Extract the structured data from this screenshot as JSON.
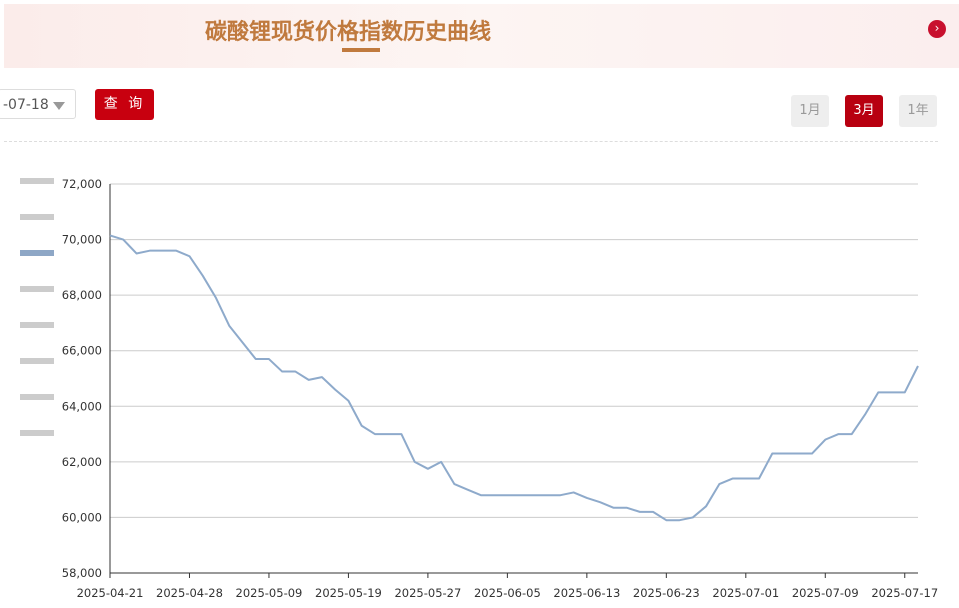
{
  "header": {
    "title": "碳酸锂现货价格指数历史曲线"
  },
  "controls": {
    "date": "-07-18",
    "query": "查 询",
    "ranges": [
      "1月",
      "3月",
      "1年"
    ]
  },
  "chart_data": {
    "type": "line",
    "categories": [
      "2025-04-21",
      null,
      null,
      null,
      null,
      null,
      "2025-04-28",
      null,
      null,
      null,
      null,
      null,
      "2025-05-09",
      null,
      null,
      null,
      null,
      null,
      "2025-05-19",
      null,
      null,
      null,
      null,
      null,
      "2025-05-27",
      null,
      null,
      null,
      null,
      null,
      "2025-06-05",
      null,
      null,
      null,
      null,
      null,
      "2025-06-13",
      null,
      null,
      null,
      null,
      null,
      "2025-06-23",
      null,
      null,
      null,
      null,
      null,
      "2025-07-01",
      null,
      null,
      null,
      null,
      null,
      "2025-07-09",
      null,
      null,
      null,
      null,
      null,
      "2025-07-17",
      null
    ],
    "series": [
      {
        "name": "碳酸锂现货价格指数",
        "color": "#8eaacb",
        "values": [
          70150,
          70000,
          69500,
          69600,
          69600,
          69600,
          69400,
          68700,
          67900,
          66900,
          66300,
          65700,
          65700,
          65250,
          65250,
          64950,
          65050,
          64600,
          64200,
          63300,
          63000,
          63000,
          63000,
          62000,
          61750,
          62000,
          61200,
          61000,
          60800,
          60800,
          60800,
          60800,
          60800,
          60800,
          60800,
          60900,
          60700,
          60550,
          60350,
          60350,
          60200,
          60200,
          59900,
          59900,
          60000,
          60400,
          61200,
          61400,
          61400,
          61400,
          62300,
          62300,
          62300,
          62300,
          62800,
          63000,
          63000,
          63700,
          64500,
          64500,
          64500,
          65450
        ]
      }
    ],
    "ylim": [
      58000,
      72000
    ],
    "yticks": [
      {
        "value": 58000,
        "label": "58,000"
      },
      {
        "value": 60000,
        "label": "60,000"
      },
      {
        "value": 62000,
        "label": "62,000"
      },
      {
        "value": 64000,
        "label": "64,000"
      },
      {
        "value": 66000,
        "label": "66,000"
      },
      {
        "value": 68000,
        "label": "68,000"
      },
      {
        "value": 70000,
        "label": "70,000"
      },
      {
        "value": 72000,
        "label": "72,000"
      }
    ],
    "grid": true
  }
}
